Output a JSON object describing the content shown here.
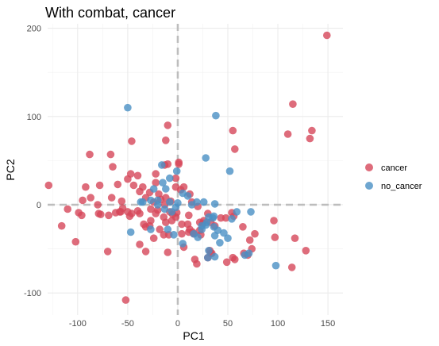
{
  "chart_data": {
    "type": "scatter",
    "title": "With combat, cancer",
    "xlabel": "PC1",
    "ylabel": "PC2",
    "xlim": [
      -130,
      165
    ],
    "ylim": [
      -125,
      205
    ],
    "x_ticks": [
      -100,
      -50,
      0,
      50,
      100,
      150
    ],
    "y_ticks": [
      -100,
      0,
      100,
      200
    ],
    "x_tick_labels": [
      "-100",
      "-50",
      "0",
      "50",
      "100",
      "150"
    ],
    "y_tick_labels": [
      "-100",
      "0",
      "100",
      "200"
    ],
    "grid": true,
    "reference_lines": {
      "x": 0,
      "y": 0
    },
    "legend_position": "right",
    "series": [
      {
        "name": "cancer",
        "color": "#D6475A",
        "points": [
          [
            149,
            192
          ],
          [
            115,
            114
          ],
          [
            134,
            84
          ],
          [
            110,
            80
          ],
          [
            132,
            75
          ],
          [
            55,
            84
          ],
          [
            57,
            63
          ],
          [
            -10,
            90
          ],
          [
            -12,
            73
          ],
          [
            -46,
            72
          ],
          [
            -88,
            57
          ],
          [
            -67,
            57
          ],
          [
            -65,
            43
          ],
          [
            -47,
            35
          ],
          [
            -40,
            33
          ],
          [
            -22,
            35
          ],
          [
            -13,
            45
          ],
          [
            -10,
            46
          ],
          [
            1,
            48
          ],
          [
            1,
            46
          ],
          [
            -129,
            22
          ],
          [
            -92,
            20
          ],
          [
            -78,
            22
          ],
          [
            -60,
            23
          ],
          [
            -50,
            29
          ],
          [
            -44,
            22
          ],
          [
            -35,
            20
          ],
          [
            -28,
            14
          ],
          [
            -22,
            25
          ],
          [
            -19,
            12
          ],
          [
            -24,
            3
          ],
          [
            -32,
            8
          ],
          [
            -38,
            15
          ],
          [
            -17,
            6
          ],
          [
            -12,
            8
          ],
          [
            -7,
            4
          ],
          [
            -2,
            30
          ],
          [
            -2,
            20
          ],
          [
            3,
            17
          ],
          [
            6,
            20
          ],
          [
            12,
            12
          ],
          [
            14,
            3
          ],
          [
            20,
            -2
          ],
          [
            11,
            -12
          ],
          [
            -5,
            -11
          ],
          [
            -1,
            -9
          ],
          [
            -95,
            5
          ],
          [
            -87,
            8
          ],
          [
            -80,
            0
          ],
          [
            -79,
            -10
          ],
          [
            -66,
            8
          ],
          [
            -62,
            -9
          ],
          [
            -56,
            4
          ],
          [
            -55,
            -4
          ],
          [
            -50,
            -8
          ],
          [
            -40,
            -7
          ],
          [
            -27,
            -5
          ],
          [
            -20,
            -6
          ],
          [
            -13,
            0
          ],
          [
            -8,
            -8
          ],
          [
            -110,
            -5
          ],
          [
            -99,
            -9
          ],
          [
            -69,
            -12
          ],
          [
            -58,
            -8
          ],
          [
            -46,
            -10
          ],
          [
            -38,
            -10
          ],
          [
            -22,
            -10
          ],
          [
            -14,
            -14
          ],
          [
            -32,
            -25
          ],
          [
            -28,
            -24
          ],
          [
            -18,
            -28
          ],
          [
            -12,
            -20
          ],
          [
            -6,
            -18
          ],
          [
            -2,
            -14
          ],
          [
            -116,
            -24
          ],
          [
            -102,
            -42
          ],
          [
            -96,
            -12
          ],
          [
            -77,
            -11
          ],
          [
            -57,
            -8
          ],
          [
            -48,
            -13
          ],
          [
            -34,
            -22
          ],
          [
            -27,
            -18
          ],
          [
            -24,
            -38
          ],
          [
            -14,
            -34
          ],
          [
            -9,
            -34
          ],
          [
            4,
            -22
          ],
          [
            10,
            -22
          ],
          [
            15,
            -31
          ],
          [
            16,
            -33
          ],
          [
            22,
            -20
          ],
          [
            25,
            -21
          ],
          [
            26,
            -18
          ],
          [
            30,
            -10
          ],
          [
            33,
            -20
          ],
          [
            37,
            -24
          ],
          [
            43,
            -15
          ],
          [
            48,
            -15
          ],
          [
            54,
            -9
          ],
          [
            56,
            -13
          ],
          [
            65,
            -25
          ],
          [
            72,
            -40
          ],
          [
            77,
            -33
          ],
          [
            96,
            -18
          ],
          [
            97,
            -37
          ],
          [
            114,
            -71
          ],
          [
            117,
            -38
          ],
          [
            128,
            -52
          ],
          [
            49,
            -65
          ],
          [
            55,
            -60
          ],
          [
            57,
            -62
          ],
          [
            32,
            -52
          ],
          [
            33,
            -55
          ],
          [
            17,
            -62
          ],
          [
            19,
            -67
          ],
          [
            -38,
            -45
          ],
          [
            -32,
            -53
          ],
          [
            -10,
            -54
          ],
          [
            -52,
            -108
          ],
          [
            30,
            -60
          ],
          [
            34,
            -55
          ],
          [
            66,
            -55
          ],
          [
            70,
            -57
          ],
          [
            74,
            -50
          ],
          [
            4,
            -33
          ],
          [
            6,
            -48
          ],
          [
            11,
            -31
          ],
          [
            12,
            -28
          ],
          [
            22,
            -29
          ],
          [
            23,
            -34
          ],
          [
            -70,
            -53
          ]
        ]
      },
      {
        "name": "no_cancer",
        "color": "#4A90C4",
        "points": [
          [
            -50,
            110
          ],
          [
            38,
            101
          ],
          [
            28,
            53
          ],
          [
            52,
            38
          ],
          [
            -16,
            45
          ],
          [
            -8,
            30
          ],
          [
            -1,
            38
          ],
          [
            -15,
            25
          ],
          [
            -12,
            18
          ],
          [
            -24,
            18
          ],
          [
            -20,
            5
          ],
          [
            -27,
            5
          ],
          [
            -35,
            3
          ],
          [
            -37,
            3
          ],
          [
            -20,
            0
          ],
          [
            -13,
            -5
          ],
          [
            -6,
            -8
          ],
          [
            -2,
            -3
          ],
          [
            -8,
            3
          ],
          [
            0,
            2
          ],
          [
            10,
            10
          ],
          [
            5,
            13
          ],
          [
            14,
            0
          ],
          [
            19,
            3
          ],
          [
            26,
            3
          ],
          [
            37,
            1
          ],
          [
            36,
            -13
          ],
          [
            28,
            -23
          ],
          [
            29,
            -20
          ],
          [
            31,
            -14
          ],
          [
            24,
            -24
          ],
          [
            36,
            -25
          ],
          [
            54,
            -16
          ],
          [
            59,
            -8
          ],
          [
            73,
            -8
          ],
          [
            50,
            -38
          ],
          [
            40,
            -29
          ],
          [
            35,
            -15
          ],
          [
            16,
            -33
          ],
          [
            -10,
            -28
          ],
          [
            -27,
            -28
          ],
          [
            -47,
            -31
          ],
          [
            -4,
            -34
          ],
          [
            5,
            -44
          ],
          [
            20,
            -37
          ],
          [
            37,
            -35
          ],
          [
            46,
            -32
          ],
          [
            30,
            -60
          ],
          [
            31,
            -52
          ],
          [
            37,
            -59
          ],
          [
            67,
            -57
          ],
          [
            71,
            -55
          ],
          [
            98,
            -69
          ],
          [
            42,
            -43
          ],
          [
            24,
            -28
          ]
        ]
      }
    ]
  }
}
